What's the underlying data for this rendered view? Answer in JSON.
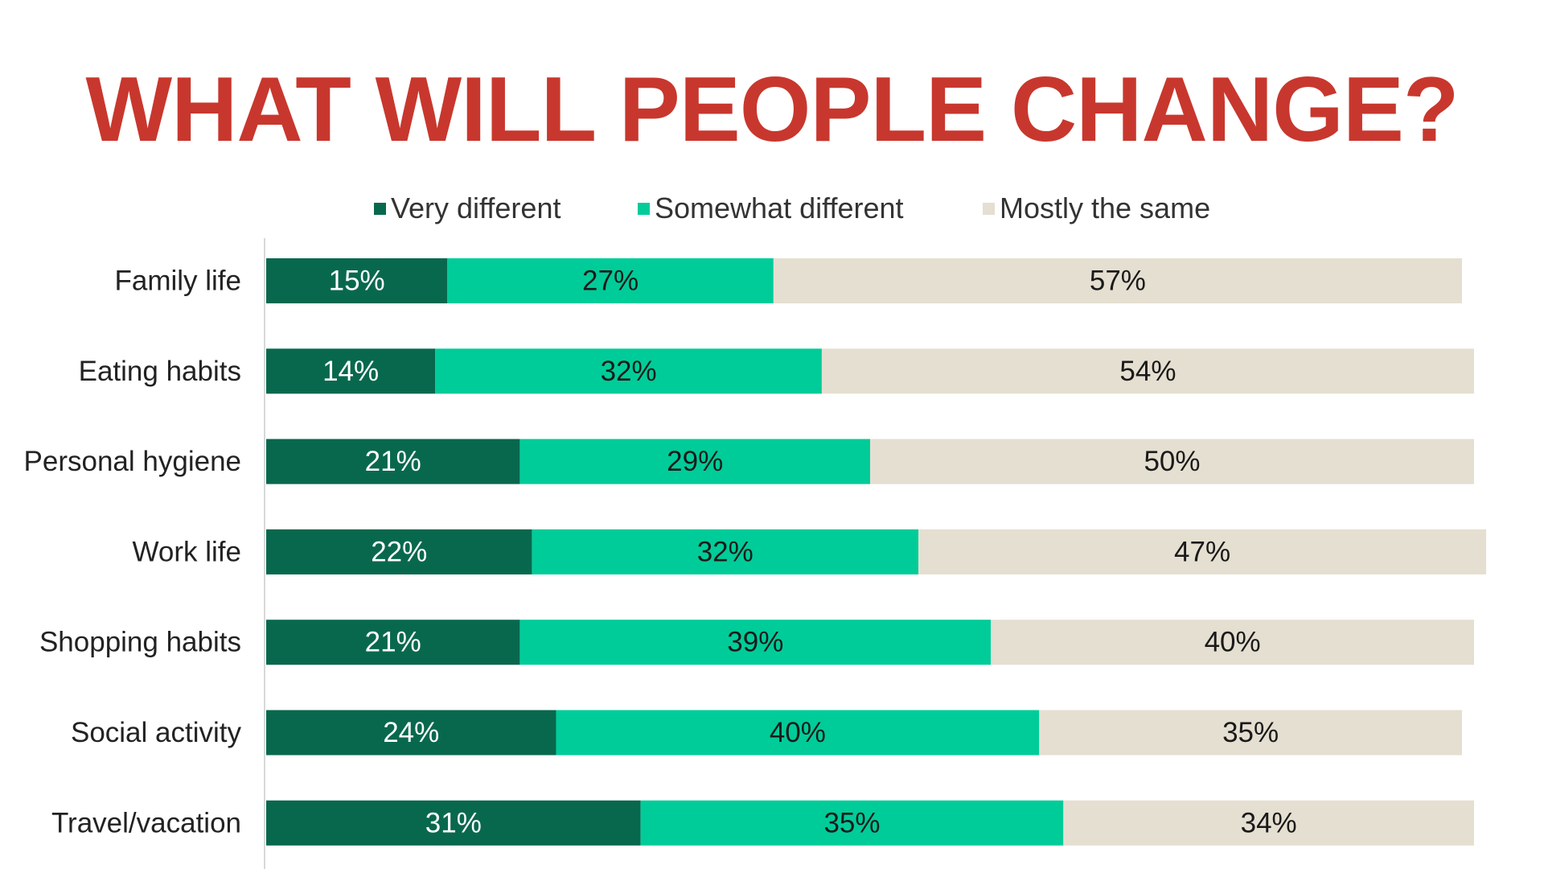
{
  "slide": {
    "title": "WHAT WILL PEOPLE CHANGE?"
  },
  "chart_data": {
    "type": "bar",
    "orientation": "horizontal",
    "stacked": true,
    "legend_placement": "top",
    "grid": false,
    "categories": [
      "Family life",
      "Eating habits",
      "Personal hygiene",
      "Work life",
      "Shopping habits",
      "Social activity",
      "Travel/vacation"
    ],
    "series": [
      {
        "name": "Very different",
        "color": "#08684d",
        "label_color": "#ffffff",
        "values": [
          15,
          14,
          21,
          22,
          21,
          24,
          31
        ]
      },
      {
        "name": "Somewhat different",
        "color": "#00cc99",
        "label_color": "#1a1a1a",
        "values": [
          27,
          32,
          29,
          32,
          39,
          40,
          35
        ]
      },
      {
        "name": "Mostly the same",
        "color": "#e5dfd1",
        "label_color": "#1a1a1a",
        "values": [
          57,
          54,
          50,
          47,
          40,
          35,
          34
        ]
      }
    ],
    "data_labels": [
      [
        "15%",
        "14%",
        "21%",
        "22%",
        "21%",
        "24%",
        "31%"
      ],
      [
        "27%",
        "32%",
        "29%",
        "32%",
        "39%",
        "40%",
        "35%"
      ],
      [
        "57%",
        "54%",
        "50%",
        "47%",
        "40%",
        "35%",
        "34%"
      ]
    ],
    "xlim": [
      0,
      100
    ]
  }
}
